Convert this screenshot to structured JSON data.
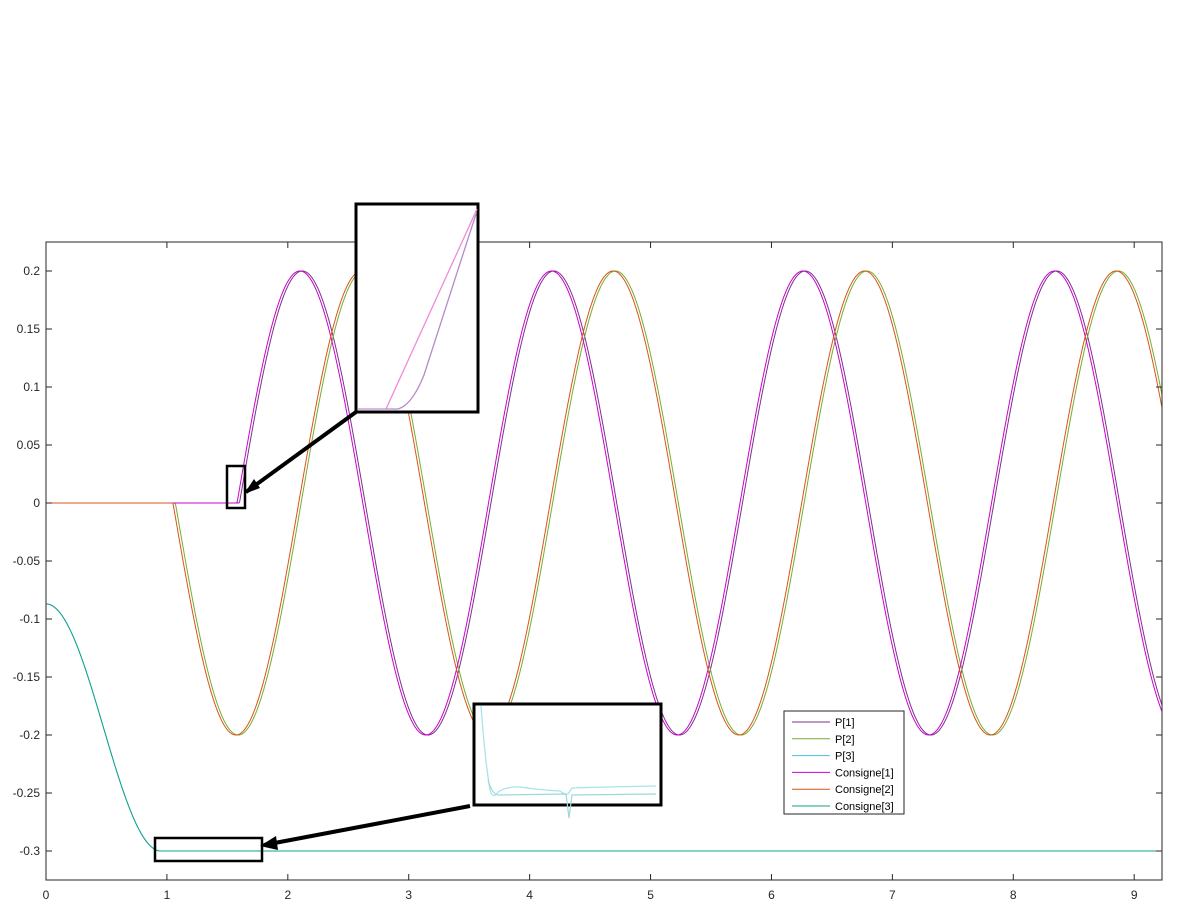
{
  "chart_data": {
    "type": "line",
    "title": "",
    "xlabel": "",
    "ylabel": "",
    "xlim": [
      0,
      9.23
    ],
    "ylim": [
      -0.325,
      0.225
    ],
    "xticks": [
      0,
      1,
      2,
      3,
      4,
      5,
      6,
      7,
      8,
      9
    ],
    "xtick_labels": [
      "0",
      "1",
      "2",
      "3",
      "4",
      "5",
      "6",
      "7",
      "8",
      "9"
    ],
    "yticks": [
      0.2,
      0.15,
      0.1,
      0.05,
      0,
      -0.05,
      -0.1,
      -0.15,
      -0.2,
      -0.25,
      -0.3
    ],
    "ytick_labels": [
      "0.2",
      "0.15",
      "0.1",
      "0.05",
      "0",
      "-0.05",
      "-0.1",
      "-0.15",
      "-0.2",
      "-0.25",
      "-0.3"
    ],
    "grid": false,
    "legend_position": "lower-right",
    "series": [
      {
        "name": "P[1]",
        "color": "#7E2F8E",
        "model": "sine_start",
        "start": 1.58,
        "amplitude": 0.2,
        "period": 2.08,
        "sign": 1,
        "lag": 0.02
      },
      {
        "name": "P[2]",
        "color": "#77AC30",
        "model": "sine_start",
        "start": 1.05,
        "amplitude": 0.2,
        "period": 2.08,
        "sign": -1,
        "lag": 0.02
      },
      {
        "name": "P[3]",
        "color": "#4DBEEE",
        "model": "settle",
        "y0": -0.087,
        "y1": -0.3,
        "t_end": 0.95
      },
      {
        "name": "Consigne[1]",
        "color": "#CC00CC",
        "model": "sine_start",
        "start": 1.58,
        "amplitude": 0.2,
        "period": 2.08,
        "sign": 1,
        "lag": 0
      },
      {
        "name": "Consigne[2]",
        "color": "#D95319",
        "model": "sine_start",
        "start": 1.05,
        "amplitude": 0.2,
        "period": 2.08,
        "sign": -1,
        "lag": 0
      },
      {
        "name": "Consigne[3]",
        "color": "#0FA18A",
        "model": "settle",
        "y0": -0.087,
        "y1": -0.3,
        "t_end": 0.95
      }
    ],
    "zoom_callouts": [
      {
        "name": "zoom-inset-consigne1-start",
        "target_x": [
          1.5,
          1.65
        ],
        "target_y": [
          -0.004,
          0.032
        ],
        "series": [
          "P[1]",
          "Consigne[1]"
        ]
      },
      {
        "name": "zoom-inset-consigne3-settle",
        "target_x": [
          0.9,
          1.78
        ],
        "target_y": [
          -0.309,
          -0.288
        ],
        "series": [
          "P[3]",
          "Consigne[3]"
        ]
      }
    ]
  }
}
